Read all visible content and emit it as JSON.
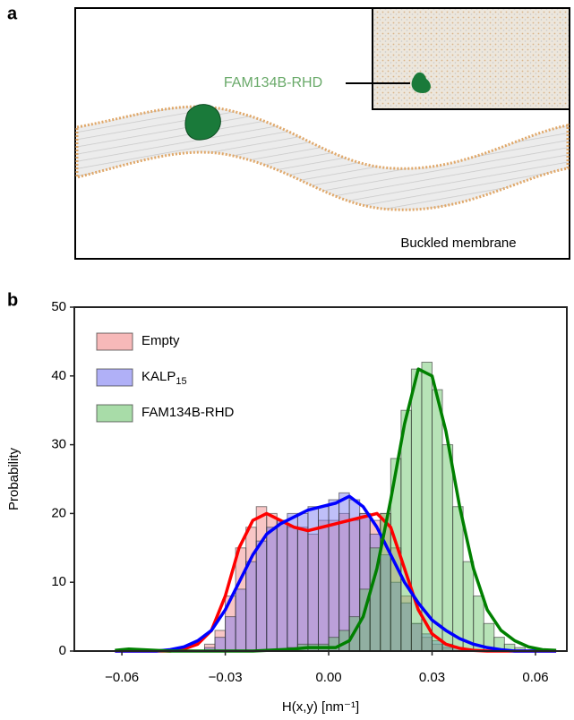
{
  "panel_a": {
    "label": "a",
    "protein_label": "FAM134B-RHD",
    "caption": "Buckled membrane"
  },
  "panel_b_label": "b",
  "chart_data": {
    "type": "histogram",
    "ylabel": "Probability",
    "xlabel": "H(x,y) [nm⁻¹]",
    "xlim": [
      -0.0738,
      0.0691
    ],
    "ylim": [
      0,
      50
    ],
    "xticks": [
      {
        "value": -0.06,
        "label": "−0.06"
      },
      {
        "value": -0.03,
        "label": "−0.03"
      },
      {
        "value": 0,
        "label": "0.00"
      },
      0.03,
      0.06
    ],
    "yticks": [
      0,
      10,
      20,
      30,
      40,
      50
    ],
    "legend": "upper left",
    "bins": [
      -0.036,
      -0.033,
      -0.03,
      -0.027,
      -0.024,
      -0.021,
      -0.018,
      -0.015,
      -0.012,
      -0.009,
      -0.006,
      -0.003,
      0,
      0.003,
      0.006,
      0.009,
      0.012,
      0.015,
      0.018,
      0.021,
      0.024,
      0.027,
      0.03,
      0.033,
      0.036,
      0.039,
      0.042,
      0.045,
      0.048,
      0.051,
      0.054,
      0.057
    ],
    "kde_x": [
      -0.062,
      -0.058,
      -0.054,
      -0.05,
      -0.046,
      -0.042,
      -0.038,
      -0.034,
      -0.03,
      -0.026,
      -0.022,
      -0.018,
      -0.014,
      -0.01,
      -0.006,
      -0.002,
      0.002,
      0.006,
      0.01,
      0.014,
      0.018,
      0.022,
      0.026,
      0.03,
      0.034,
      0.038,
      0.042,
      0.046,
      0.05,
      0.054,
      0.058,
      0.062,
      0.066
    ],
    "series": [
      {
        "name": "Empty",
        "color": "#ff0000",
        "fill": "#f08080",
        "values": [
          1,
          3,
          8,
          15,
          18,
          21,
          20,
          19,
          18,
          18,
          17,
          19,
          19,
          20,
          19,
          20,
          19,
          20,
          15,
          8,
          4,
          2,
          1,
          0.5,
          0,
          0,
          0,
          0,
          0,
          0,
          0
        ],
        "kde": [
          0,
          0,
          0,
          0,
          0,
          0.3,
          1,
          3,
          8,
          15,
          19,
          20,
          19,
          18,
          17.5,
          18,
          18.5,
          19,
          19.5,
          20,
          18,
          12,
          6,
          2.5,
          1,
          0.4,
          0.1,
          0,
          0,
          0,
          0,
          0,
          0
        ]
      },
      {
        "name": "KALP",
        "name_sub": "15",
        "color": "#0000ff",
        "fill": "#7070f0",
        "values": [
          0.5,
          2,
          5,
          9,
          13,
          16,
          18,
          19,
          20,
          20,
          21,
          21,
          22,
          23,
          22,
          20,
          17,
          14,
          10,
          7,
          4,
          2.5,
          1.5,
          1,
          0.5,
          0,
          0,
          0,
          0,
          0,
          0
        ],
        "kde": [
          0,
          0,
          0,
          0,
          0.2,
          0.6,
          1.5,
          3,
          6,
          10,
          14,
          17,
          18.5,
          19.5,
          20.5,
          21,
          21.5,
          22.5,
          21,
          18,
          14,
          10,
          7,
          4.5,
          3,
          1.8,
          1,
          0.5,
          0.2,
          0,
          0,
          0,
          0
        ]
      },
      {
        "name": "FAM134B-RHD",
        "color": "#008000",
        "fill": "#60c060",
        "values": [
          0,
          0,
          0,
          0,
          0,
          0,
          0,
          0,
          0.5,
          1,
          1,
          1,
          2,
          3,
          5,
          9,
          15,
          20,
          28,
          35,
          41,
          42,
          38,
          30,
          21,
          13,
          8,
          4,
          2,
          1,
          0.5
        ],
        "kde": [
          0.1,
          0.3,
          0.2,
          0.1,
          0,
          0,
          0,
          0,
          0,
          0,
          0,
          0.1,
          0.2,
          0.3,
          0.5,
          0.5,
          0.5,
          1.5,
          5,
          12,
          22,
          33,
          41,
          40,
          32,
          21,
          12,
          6,
          3,
          1.5,
          0.6,
          0.2,
          0.1
        ]
      }
    ]
  }
}
